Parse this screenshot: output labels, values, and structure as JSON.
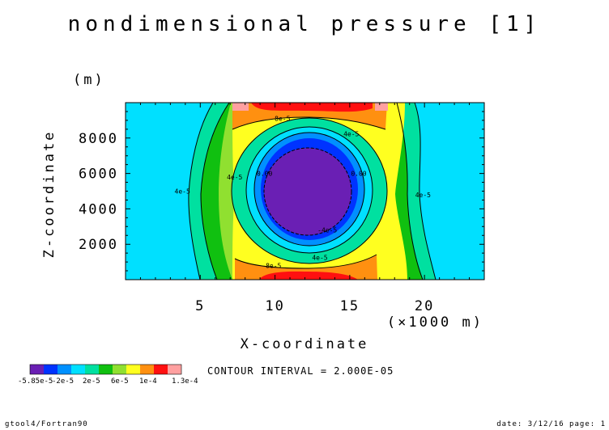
{
  "chart_data": {
    "type": "heatmap",
    "title": "nondimensional pressure [1]",
    "xlabel": "X-coordinate",
    "x_unit": "(×1000 m)",
    "ylabel": "Z-coordinate",
    "y_unit": "(m)",
    "xlim": [
      0,
      24
    ],
    "ylim": [
      0,
      10000
    ],
    "x_ticks": [
      5,
      10,
      15,
      20
    ],
    "y_ticks": [
      2000,
      4000,
      6000,
      8000
    ],
    "contour_interval_text": "CONTOUR INTERVAL = 2.000E-05",
    "contour_labels": [
      {
        "text": "8e-5",
        "x": 10.5,
        "y": 9100
      },
      {
        "text": "4e-5",
        "x": 15.1,
        "y": 8250
      },
      {
        "text": "0.00",
        "x": 9.3,
        "y": 6000
      },
      {
        "text": "0.00",
        "x": 15.6,
        "y": 6000
      },
      {
        "text": "4e-5",
        "x": 7.3,
        "y": 5800
      },
      {
        "text": "4e-5",
        "x": 3.8,
        "y": 5000
      },
      {
        "text": "4e-5",
        "x": 19.9,
        "y": 4800
      },
      {
        "text": "-4e-5",
        "x": 13.5,
        "y": 2800
      },
      {
        "text": "4e-5",
        "x": 13.0,
        "y": 1250
      },
      {
        "text": "8e-5",
        "x": 9.9,
        "y": 800
      }
    ],
    "colorbar": {
      "colors": [
        "#6a1fb4",
        "#0033ff",
        "#0090ff",
        "#00e0ff",
        "#00e0a0",
        "#10c010",
        "#90e030",
        "#ffff20",
        "#ff9010",
        "#ff1010",
        "#ffa0a0"
      ],
      "tick_labels": [
        "-5.85e-5",
        "-2e-5",
        "2e-5",
        "6e-5",
        "1e-4",
        "1.3e-4"
      ]
    }
  },
  "footer": {
    "left": "gtool4/Fortran90",
    "right": "date: 3/12/16 page: 1"
  }
}
